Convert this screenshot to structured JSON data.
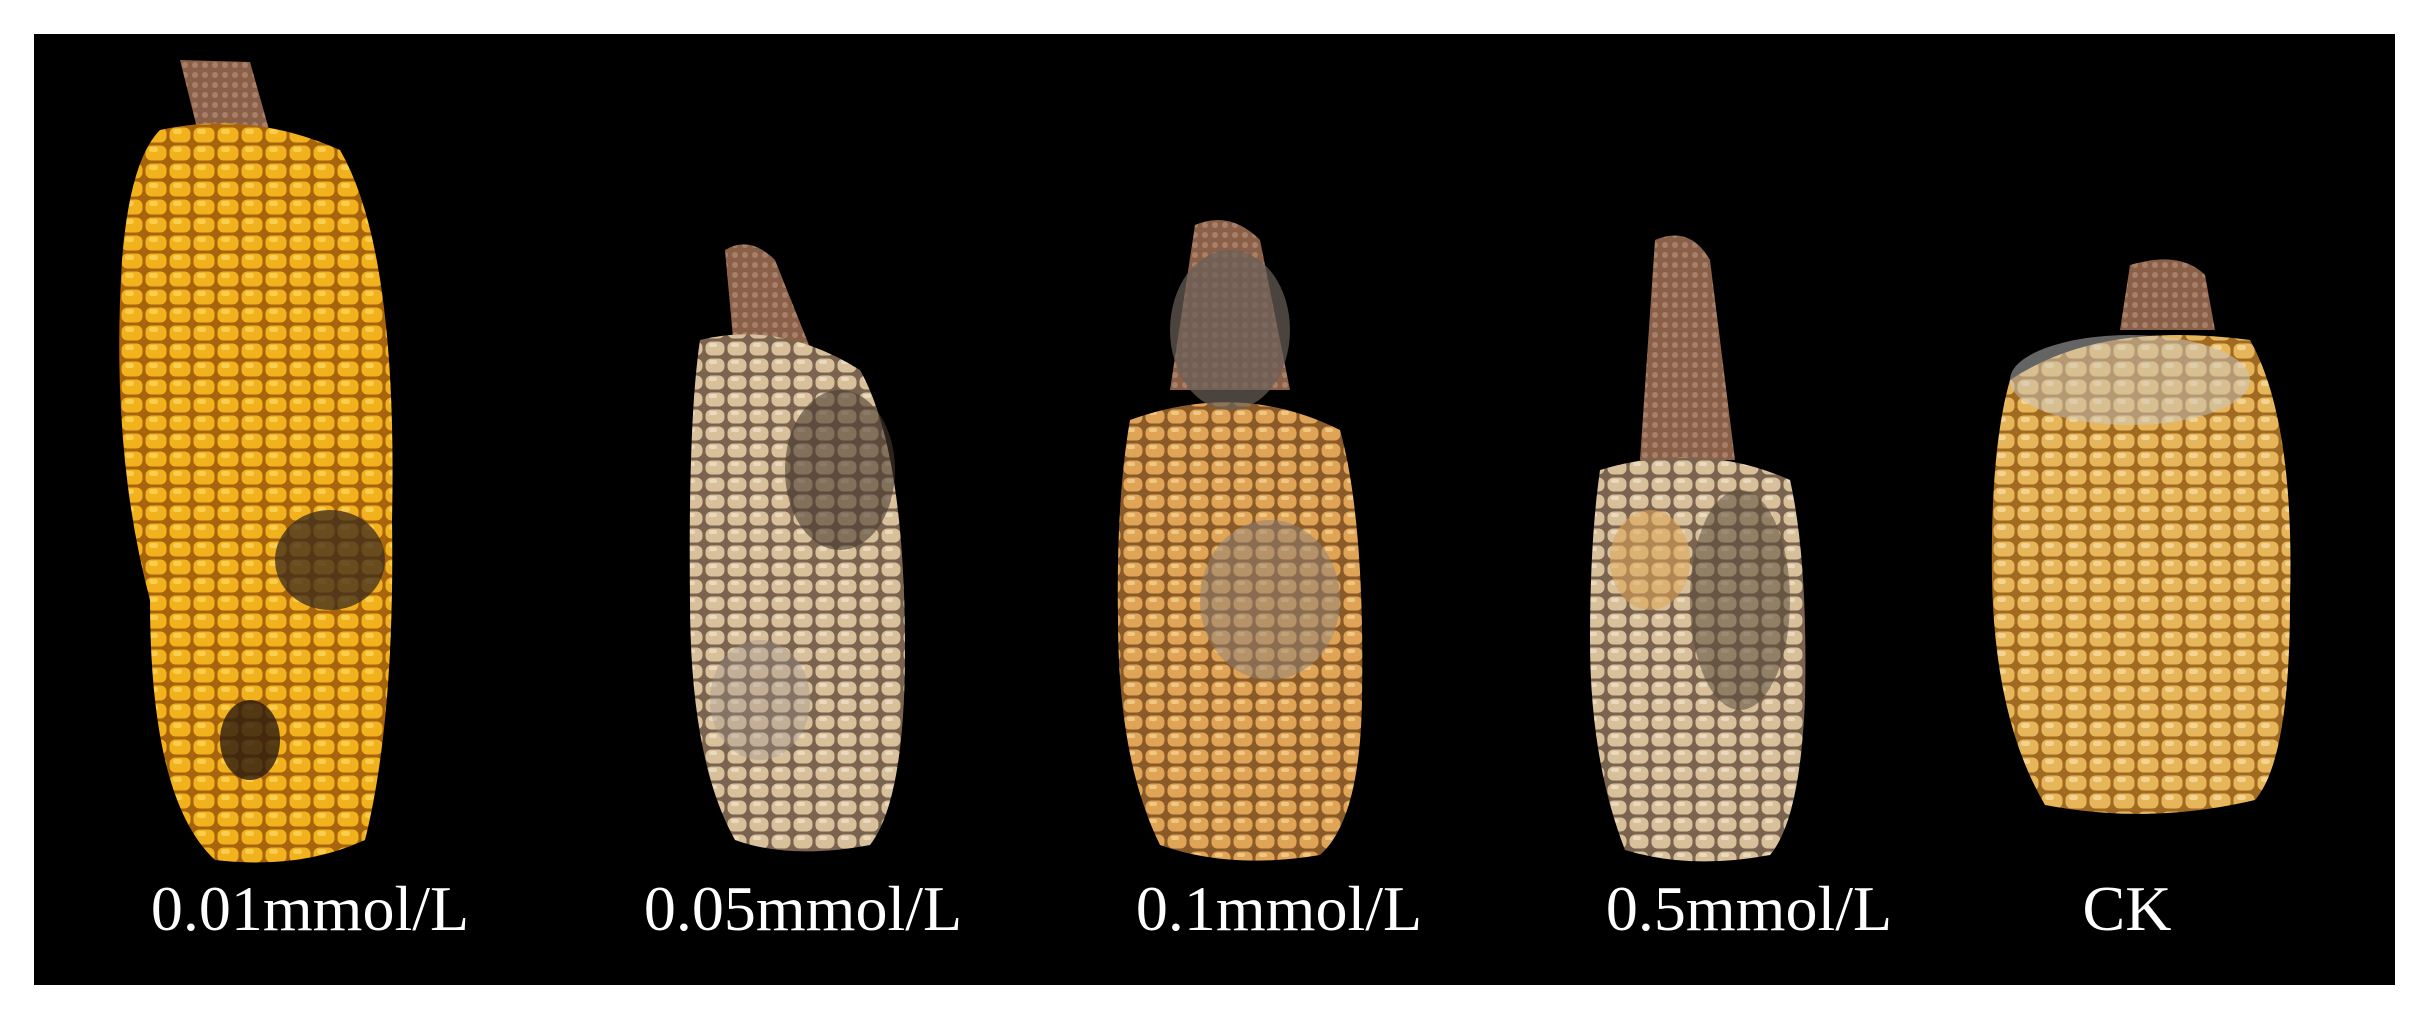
{
  "labels": [
    "0.01mmol/L",
    "0.05mmol/L",
    "0.1mmol/L",
    "0.5mmol/L",
    "CK"
  ]
}
